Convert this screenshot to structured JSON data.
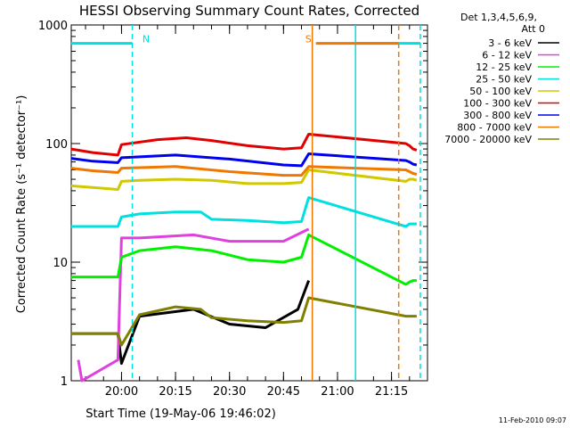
{
  "chart_data": {
    "type": "line",
    "title": "HESSI Observing Summary Count Rates, Corrected",
    "xlabel": "Start Time (19-May-06 19:46:02)",
    "ylabel": "Corrected Count Rate (s⁻¹ detector⁻¹)",
    "y_scale": "log",
    "ylim": [
      1,
      1000
    ],
    "y_tick_labels": [
      "1",
      "10",
      "100",
      "1000"
    ],
    "xlim": [
      "19:46:02",
      "21:25:00"
    ],
    "x_tick_labels": [
      "20:00",
      "20:15",
      "20:30",
      "20:45",
      "21:00",
      "21:15"
    ],
    "grid": false,
    "legend": {
      "title": [
        "Det 1,3,4,5,6,9,",
        "Att 0"
      ],
      "placement": "right"
    },
    "series": [
      {
        "name": "3 - 6 keV",
        "color": "#000000",
        "x": [
          "19:46",
          "19:59",
          "20:00",
          "20:05",
          "20:20",
          "20:30",
          "20:40",
          "20:49",
          "20:52",
          "20:53"
        ],
        "values": [
          2.5,
          2.5,
          1.4,
          3.5,
          4.0,
          3.0,
          2.8,
          4.0,
          7.0,
          null
        ]
      },
      {
        "name": "6 - 12 keV",
        "color": "#e040e0",
        "x": [
          "19:46",
          "19:48",
          "19:49",
          "19:59",
          "20:00",
          "20:05",
          "20:20",
          "20:30",
          "20:45",
          "20:52",
          "21:19",
          "21:20",
          "21:21",
          "21:22"
        ],
        "values": [
          null,
          1.5,
          1.0,
          1.5,
          16,
          16,
          17,
          15,
          15,
          19,
          null,
          null,
          null,
          null
        ]
      },
      {
        "name": "12 - 25 keV",
        "color": "#00f000",
        "x": [
          "19:46",
          "19:59",
          "20:00",
          "20:05",
          "20:15",
          "20:25",
          "20:35",
          "20:45",
          "20:50",
          "20:52",
          "21:19",
          "21:20",
          "21:21",
          "21:22"
        ],
        "values": [
          7.5,
          7.5,
          11,
          12.5,
          13.5,
          12.5,
          10.5,
          10,
          11,
          17,
          6.5,
          6.8,
          7.0,
          7.0
        ]
      },
      {
        "name": "25 - 50 keV",
        "color": "#00e0e0",
        "x": [
          "19:46",
          "19:59",
          "20:00",
          "20:05",
          "20:15",
          "20:22",
          "20:25",
          "20:35",
          "20:45",
          "20:50",
          "20:52",
          "21:19",
          "21:20",
          "21:21",
          "21:22"
        ],
        "values": [
          20,
          20,
          24,
          25.5,
          26.5,
          26.5,
          23,
          22.5,
          21.5,
          22,
          35,
          20,
          21,
          21,
          21
        ]
      },
      {
        "name": "50 - 100 keV",
        "color": "#d0c800",
        "x": [
          "19:46",
          "19:59",
          "20:00",
          "20:05",
          "20:15",
          "20:25",
          "20:35",
          "20:45",
          "20:50",
          "20:52",
          "21:19",
          "21:20",
          "21:21",
          "21:22"
        ],
        "values": [
          44,
          41,
          48,
          49,
          50,
          49,
          46,
          46,
          47,
          60,
          48,
          50,
          50,
          49
        ]
      },
      {
        "name": "100 - 300 keV",
        "color": "#e00000",
        "x": [
          "19:46",
          "19:52",
          "19:59",
          "20:00",
          "20:10",
          "20:18",
          "20:25",
          "20:35",
          "20:45",
          "20:50",
          "20:52",
          "21:19",
          "21:20",
          "21:21",
          "21:22"
        ],
        "values": [
          90,
          84,
          80,
          98,
          108,
          112,
          106,
          96,
          90,
          92,
          120,
          100,
          96,
          90,
          88
        ]
      },
      {
        "name": "300 - 800 keV",
        "color": "#0000f0",
        "x": [
          "19:46",
          "19:52",
          "19:59",
          "20:00",
          "20:15",
          "20:30",
          "20:45",
          "20:50",
          "20:52",
          "21:19",
          "21:20",
          "21:21",
          "21:22"
        ],
        "values": [
          75,
          71,
          69,
          76,
          80,
          74,
          66,
          65,
          82,
          72,
          70,
          67,
          66
        ]
      },
      {
        "name": "800 - 7000 keV",
        "color": "#f07800",
        "x": [
          "19:46",
          "19:52",
          "19:59",
          "20:00",
          "20:15",
          "20:30",
          "20:45",
          "20:50",
          "20:52",
          "21:19",
          "21:20",
          "21:21",
          "21:22"
        ],
        "values": [
          62,
          59,
          57,
          62,
          64,
          58,
          54,
          54,
          64,
          60,
          58,
          56,
          55
        ]
      },
      {
        "name": "7000 - 20000 keV",
        "color": "#808000",
        "x": [
          "19:46",
          "19:59",
          "20:00",
          "20:05",
          "20:15",
          "20:22",
          "20:25",
          "20:35",
          "20:45",
          "20:50",
          "20:52",
          "21:19",
          "21:20",
          "21:21",
          "21:22"
        ],
        "values": [
          2.5,
          2.5,
          2.0,
          3.6,
          4.2,
          4.0,
          3.4,
          3.2,
          3.1,
          3.2,
          5.0,
          3.5,
          3.5,
          3.5,
          3.5
        ]
      }
    ],
    "flag_bars": [
      {
        "label": "N",
        "color": "#00e0e0",
        "y": 700,
        "x_start": "19:46",
        "x_end": "20:03"
      },
      {
        "label": "",
        "color": "#00e0e0",
        "y": 700,
        "x_start": "21:05",
        "x_end": "21:23"
      },
      {
        "label": "S",
        "color": "#f07800",
        "y": 700,
        "x_start": "20:54",
        "x_end": "21:17"
      }
    ],
    "vertical_markers": [
      {
        "x": "20:03",
        "color": "#00e0e0",
        "style": "dashed"
      },
      {
        "x": "20:53",
        "color": "#f07800",
        "style": "solid"
      },
      {
        "x": "21:05",
        "color": "#00e0e0",
        "style": "solid"
      },
      {
        "x": "21:17",
        "color": "#f07800",
        "style": "dashed"
      },
      {
        "x": "21:23",
        "color": "#00e0e0",
        "style": "dashed"
      }
    ],
    "timestamp": "11-Feb-2010 09:07"
  }
}
